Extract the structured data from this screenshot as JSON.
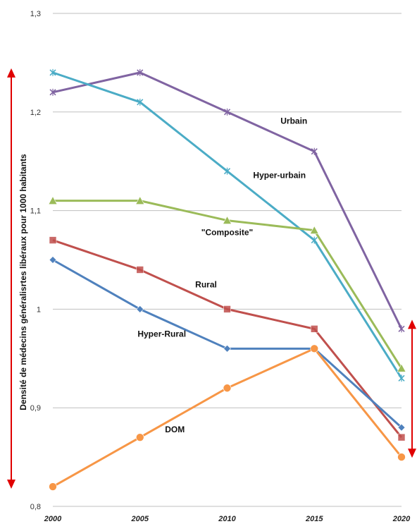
{
  "chart_data": {
    "type": "line",
    "title": "",
    "xlabel": "",
    "ylabel": "Densité de médecins généralisrtes  libéraux pour 1000 habitants",
    "x": [
      "2000",
      "2005",
      "2010",
      "2015",
      "2020"
    ],
    "ylim": [
      0.8,
      1.3
    ],
    "yticks": [
      "0,8",
      "0,9",
      "1",
      "1,1",
      "1,2",
      "1,3"
    ],
    "ytick_values": [
      0.8,
      0.9,
      1.0,
      1.1,
      1.2,
      1.3
    ],
    "grid": true,
    "series": [
      {
        "name": "Urbain",
        "color": "#8064a2",
        "marker": "x",
        "values": [
          1.22,
          1.24,
          1.2,
          1.16,
          0.98
        ]
      },
      {
        "name": "Hyper-urbain",
        "color": "#4bacc6",
        "marker": "x",
        "values": [
          1.24,
          1.21,
          1.14,
          1.07,
          0.93
        ]
      },
      {
        "name": "\"Composite\"",
        "color": "#9bbb59",
        "marker": "triangle",
        "values": [
          1.11,
          1.11,
          1.09,
          1.08,
          0.94
        ]
      },
      {
        "name": "Rural",
        "color": "#c0504d",
        "marker": "square",
        "values": [
          1.07,
          1.04,
          1.0,
          0.98,
          0.87
        ]
      },
      {
        "name": "Hyper-Rural",
        "color": "#4f81bd",
        "marker": "diamond",
        "values": [
          1.05,
          1.0,
          0.96,
          0.96,
          0.88
        ]
      },
      {
        "name": "DOM",
        "color": "#f79646",
        "marker": "circle",
        "values": [
          0.82,
          0.87,
          0.92,
          0.96,
          0.85
        ]
      }
    ],
    "annotations": [
      {
        "type": "double-arrow",
        "color": "#e00000",
        "x": "before 2000",
        "y_range": [
          0.82,
          1.24
        ]
      },
      {
        "type": "double-arrow",
        "color": "#e00000",
        "x": "after 2020",
        "y_range": [
          0.85,
          0.98
        ]
      }
    ]
  }
}
